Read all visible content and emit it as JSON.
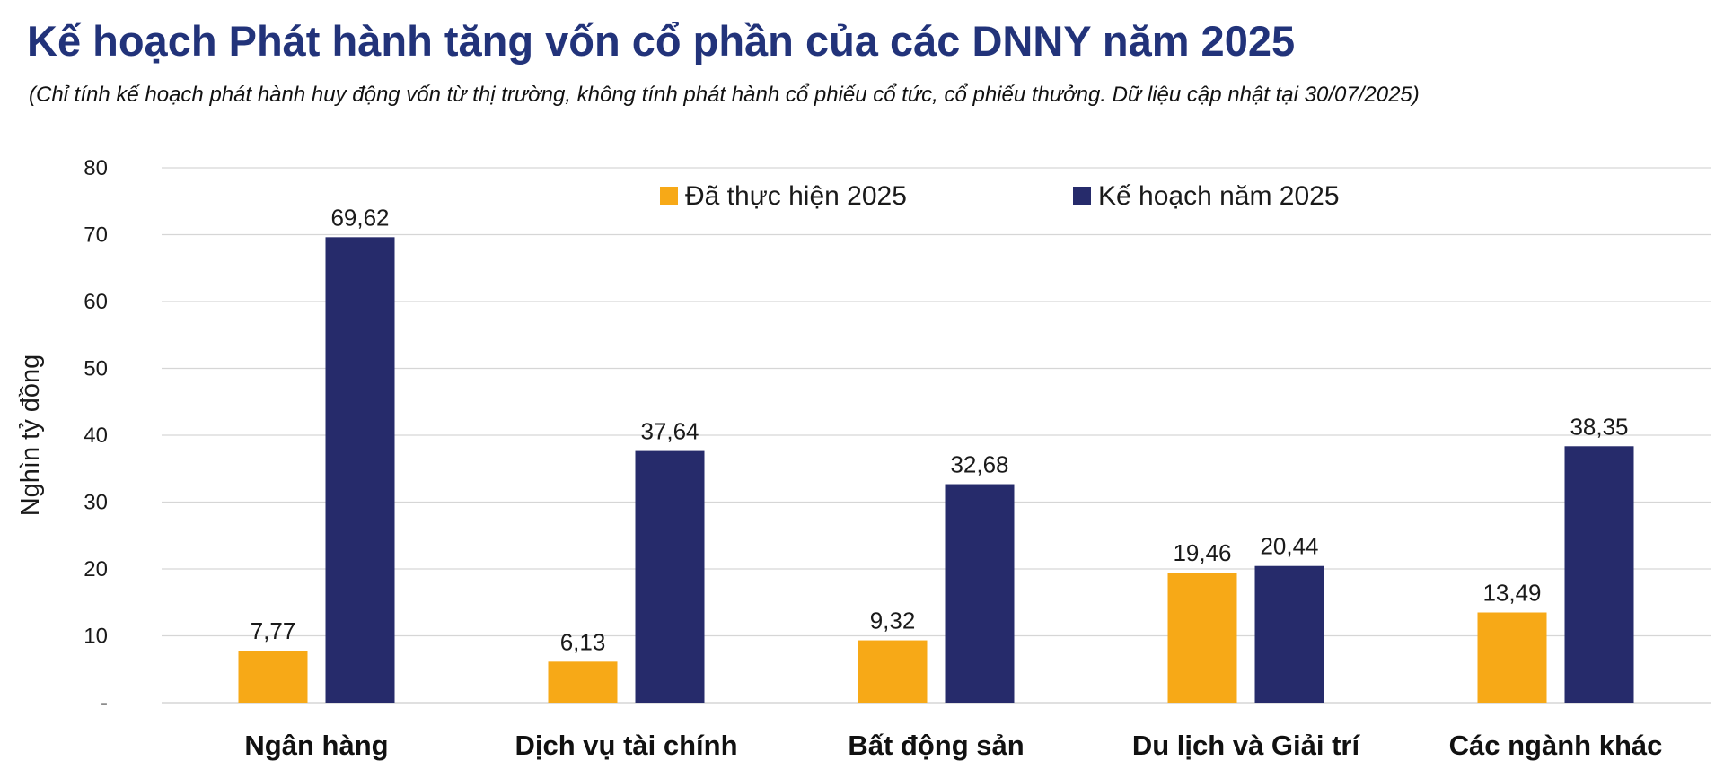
{
  "header": {
    "title": "Kế hoạch Phát hành tăng vốn cổ phần của các DNNY năm 2025",
    "subtitle": "(Chỉ tính kế hoạch phát hành huy động vốn từ thị trường, không tính phát hành cổ phiếu cổ tức, cổ phiếu thưởng. Dữ liệu cập nhật tại 30/07/2025)"
  },
  "colors": {
    "done": "#f7a917",
    "plan": "#262b6b",
    "title": "#22337a",
    "grid": "#d6d6d6"
  },
  "chart_data": {
    "type": "bar",
    "ylabel": "Nghìn tỷ đồng",
    "xlabel": "",
    "ylim": [
      0,
      80
    ],
    "yticks": [
      0,
      10,
      20,
      30,
      40,
      50,
      60,
      70,
      80
    ],
    "ytick_labels": [
      "-",
      "10",
      "20",
      "30",
      "40",
      "50",
      "60",
      "70",
      "80"
    ],
    "grid": true,
    "legend_position": "top-center",
    "categories": [
      "Ngân hàng",
      "Dịch vụ tài chính",
      "Bất động sản",
      "Du lịch và Giải trí",
      "Các ngành khác"
    ],
    "series": [
      {
        "name": "Đã thực hiện 2025",
        "values": [
          7.77,
          6.13,
          9.32,
          19.46,
          13.49
        ],
        "labels": [
          "7,77",
          "6,13",
          "9,32",
          "19,46",
          "13,49"
        ]
      },
      {
        "name": "Kế hoạch năm 2025",
        "values": [
          69.62,
          37.64,
          32.68,
          20.44,
          38.35
        ],
        "labels": [
          "69,62",
          "37,64",
          "32,68",
          "20,44",
          "38,35"
        ]
      }
    ]
  }
}
